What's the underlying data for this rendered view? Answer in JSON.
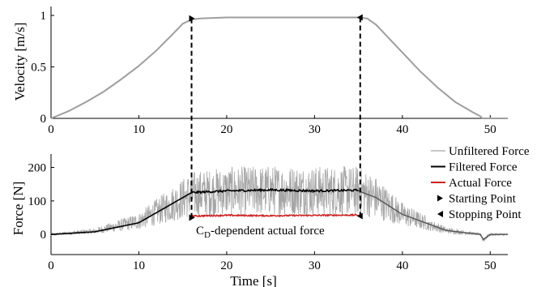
{
  "chart_data": [
    {
      "type": "line",
      "ylabel": "Velocity [m/s]",
      "xlabel": "",
      "xlim": [
        0,
        52
      ],
      "ylim": [
        0,
        1
      ],
      "xticks": [
        0,
        10,
        20,
        30,
        40,
        50
      ],
      "xtick_labels": [
        "0",
        "10",
        "20",
        "30",
        "40",
        "50"
      ],
      "yticks": [
        0,
        0.5,
        1
      ],
      "ytick_labels": [
        "0",
        "0.5",
        "1"
      ],
      "grid": false,
      "series": [
        {
          "color": "#9e9e9e",
          "x": [
            0,
            2,
            4,
            6,
            8,
            10,
            12,
            14,
            15,
            16,
            17,
            20,
            25,
            30,
            35,
            36,
            37,
            38,
            40,
            42,
            44,
            46,
            48,
            48.9,
            49.1,
            50,
            52
          ],
          "y": [
            0,
            0.07,
            0.16,
            0.26,
            0.38,
            0.51,
            0.66,
            0.83,
            0.92,
            0.96,
            0.97,
            0.98,
            0.98,
            0.98,
            0.98,
            0.97,
            0.91,
            0.82,
            0.64,
            0.46,
            0.3,
            0.16,
            0.06,
            0.02,
            0,
            0,
            0
          ]
        }
      ],
      "markers": [
        {
          "label": "Starting Point",
          "x": 16,
          "y": 0.97
        },
        {
          "label": "Stopping Point",
          "x": 35.2,
          "y": 0.98
        }
      ]
    },
    {
      "type": "line",
      "ylabel": "Force [N]",
      "xlabel": "Time [s]",
      "xlim": [
        0,
        52
      ],
      "ylim": [
        -60,
        240
      ],
      "xticks": [
        0,
        10,
        20,
        30,
        40,
        50
      ],
      "xtick_labels": [
        "0",
        "10",
        "20",
        "30",
        "40",
        "50"
      ],
      "yticks": [
        0,
        100,
        200
      ],
      "ytick_labels": [
        "0",
        "100",
        "200"
      ],
      "grid": false,
      "legend": "right",
      "series": [
        {
          "name": "Unfiltered Force",
          "color": "#a6a6a6",
          "x": [
            0,
            5,
            10,
            13,
            16,
            20,
            25,
            30,
            35,
            37,
            40,
            45,
            48.9,
            49.2,
            50,
            52
          ],
          "y": [
            0,
            10,
            40,
            80,
            120,
            128,
            132,
            130,
            130,
            110,
            60,
            12,
            0,
            -15,
            0,
            0
          ]
        },
        {
          "name": "Filtered Force",
          "color": "#000000",
          "x": [
            0,
            5,
            10,
            13,
            16,
            20,
            25,
            30,
            35
          ],
          "y": [
            0,
            8,
            35,
            80,
            125,
            130,
            133,
            130,
            132
          ]
        },
        {
          "name": "Actual Force",
          "color": "#cc2222",
          "x": [
            16,
            20,
            25,
            30,
            35
          ],
          "y": [
            55,
            57,
            56,
            57,
            58
          ]
        }
      ],
      "markers": [
        {
          "label": "Starting Point",
          "x": 16,
          "y": 50
        },
        {
          "label": "Stopping Point",
          "x": 35.2,
          "y": 55
        }
      ],
      "annotation": "C_D-dependent actual force",
      "annotation_main": "C",
      "annotation_sub": "D",
      "annotation_rest": "-dependent actual force"
    }
  ],
  "legend": {
    "items": [
      {
        "label": "Unfiltered Force",
        "kind": "line",
        "color": "#a6a6a6"
      },
      {
        "label": "Filtered Force",
        "kind": "line",
        "color": "#000000"
      },
      {
        "label": "Actual Force",
        "kind": "line",
        "color": "#cc2222"
      },
      {
        "label": "Starting Point",
        "kind": "tri-right",
        "color": "#000000"
      },
      {
        "label": "Stopping Point",
        "kind": "tri-left",
        "color": "#000000"
      }
    ]
  }
}
